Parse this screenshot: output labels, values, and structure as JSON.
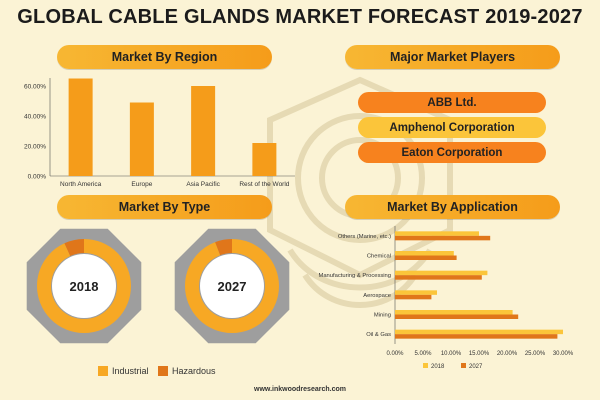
{
  "title": "GLOBAL CABLE GLANDS MARKET FORECAST 2019-2027",
  "sections": {
    "region": "Market By Region",
    "players": "Major Market Players",
    "type": "Market By Type",
    "application": "Market By Application"
  },
  "players": [
    "ABB Ltd.",
    "Amphenol Corporation",
    "Eaton Corporation"
  ],
  "type_legend": {
    "industrial": "Industrial",
    "hazardous": "Hazardous"
  },
  "footer": "www.inkwoodresearch.com",
  "colors": {
    "accent": "#f59c1a",
    "dark_orange": "#e0761a",
    "yellow": "#fbc53a",
    "gray": "#9e9e9e",
    "background": "#fbf3d5"
  },
  "chart_data": [
    {
      "type": "bar",
      "title": "Market By Region",
      "categories": [
        "North America",
        "Europe",
        "Asia Pacific",
        "Rest of the World"
      ],
      "values": [
        65,
        49,
        60,
        22
      ],
      "ylim": [
        0,
        60
      ],
      "yticks": [
        "0.00%",
        "20.00%",
        "40.00%",
        "60.00%"
      ],
      "ytick_values": [
        0,
        20,
        40,
        60
      ],
      "grid": false
    },
    {
      "type": "pie",
      "title": "Market By Type",
      "charts": [
        {
          "label": "2018",
          "slices": [
            {
              "name": "Industrial",
              "value": 93
            },
            {
              "name": "Hazardous",
              "value": 7
            }
          ]
        },
        {
          "label": "2027",
          "slices": [
            {
              "name": "Industrial",
              "value": 94
            },
            {
              "name": "Hazardous",
              "value": 6
            }
          ]
        }
      ],
      "legend": [
        "Industrial",
        "Hazardous"
      ],
      "legend_position": "bottom"
    },
    {
      "type": "bar",
      "orientation": "horizontal",
      "title": "Market By Application",
      "categories": [
        "Others (Marine, etc.)",
        "Chemical",
        "Manufacturing & Processing",
        "Aerospace",
        "Mining",
        "Oil & Gas"
      ],
      "series": [
        {
          "name": "2018",
          "values": [
            15,
            10.5,
            16.5,
            7.5,
            21,
            30
          ],
          "color": "#fbc53a"
        },
        {
          "name": "2027",
          "values": [
            17,
            11,
            15.5,
            6.5,
            22,
            29
          ],
          "color": "#e0761a"
        }
      ],
      "xlim": [
        0,
        30
      ],
      "xticks": [
        "0.00%",
        "5.00%",
        "10.00%",
        "15.00%",
        "20.00%",
        "25.00%",
        "30.00%"
      ],
      "xtick_values": [
        0,
        5,
        10,
        15,
        20,
        25,
        30
      ],
      "legend_position": "bottom"
    }
  ]
}
